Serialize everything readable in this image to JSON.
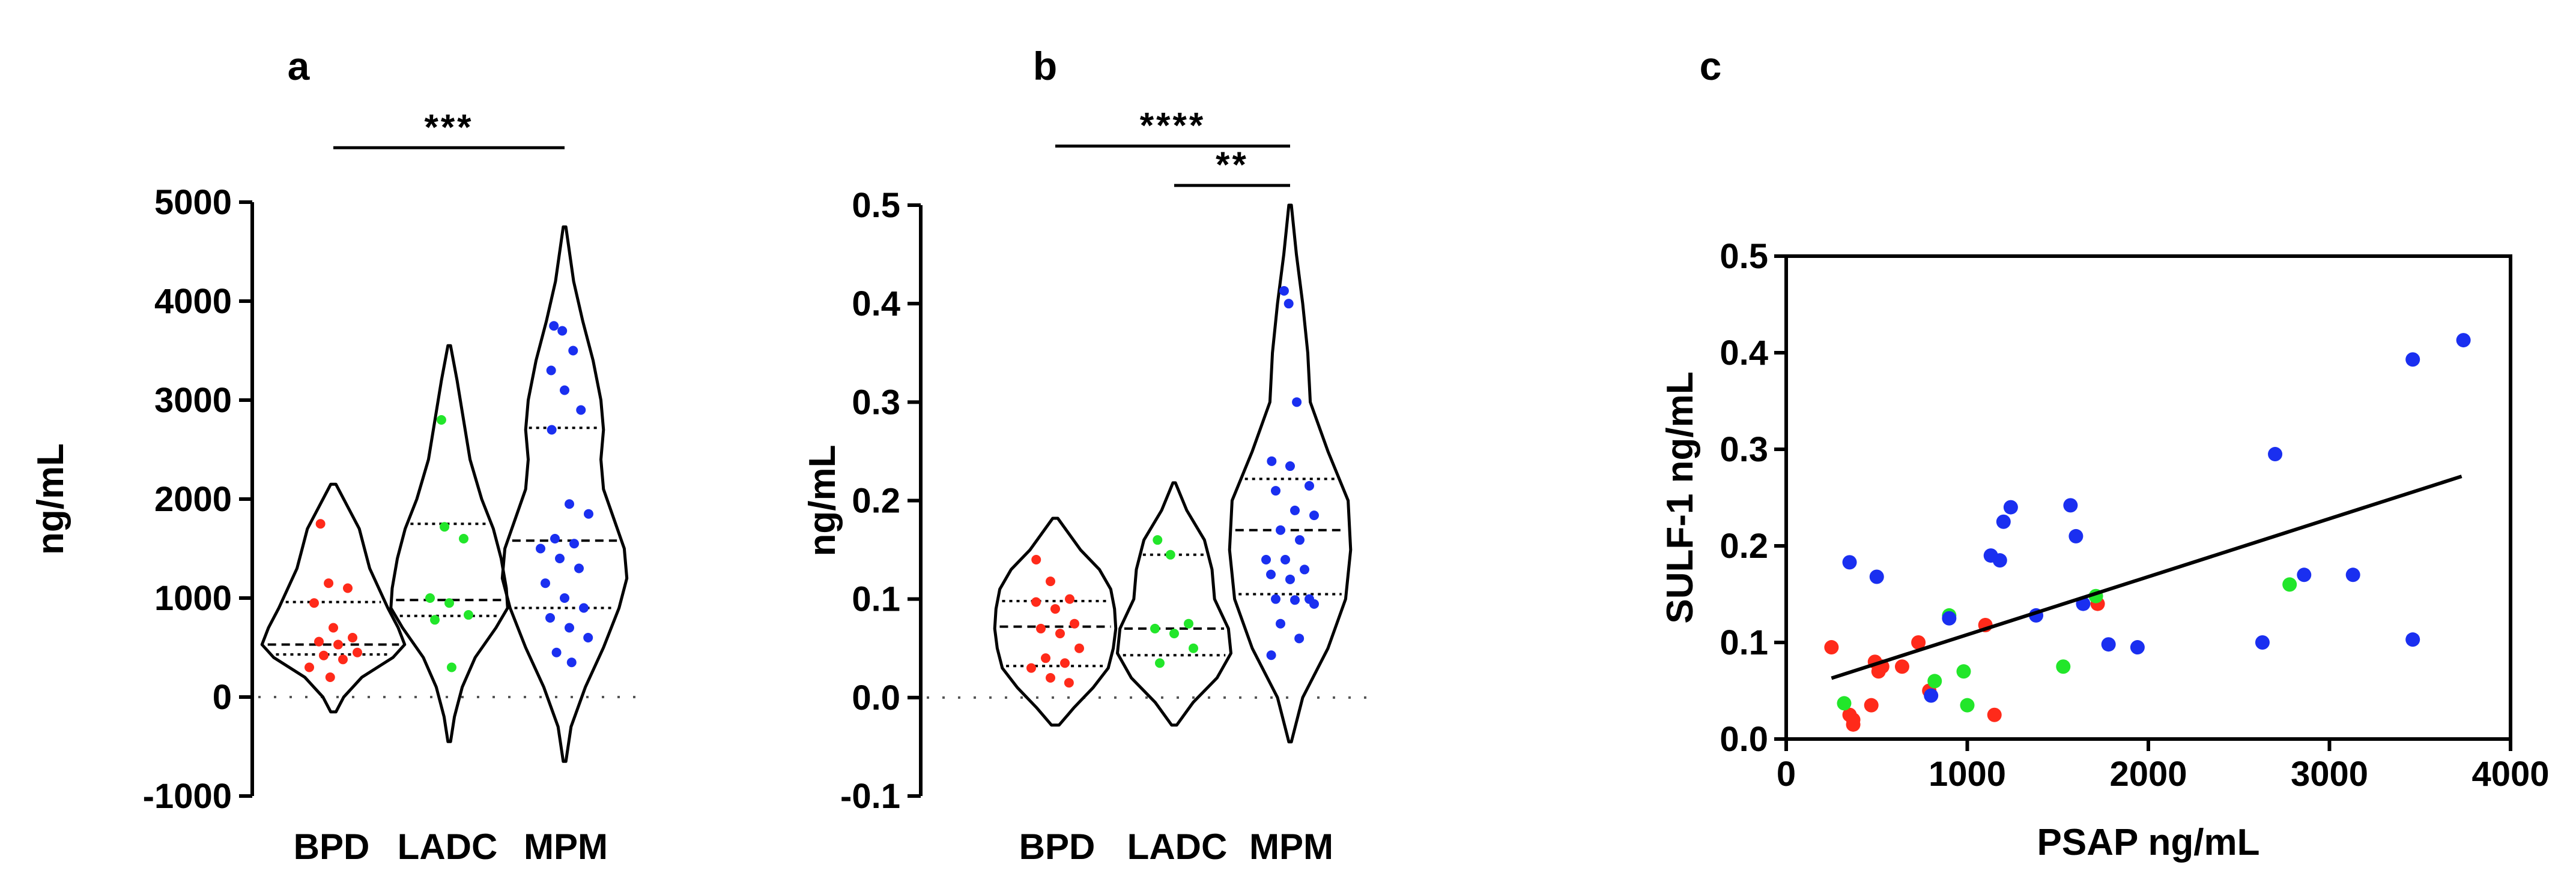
{
  "colors": {
    "BPD": "#ff2a1a",
    "LADC": "#22e62a",
    "MPM": "#1a2ff0",
    "axis": "#000000"
  },
  "chart_data": [
    {
      "panel": "a",
      "type": "violin",
      "ylabel": "ng/mL",
      "ylim": [
        -1000,
        5000
      ],
      "yticks": [
        5000,
        4000,
        3000,
        2000,
        1000,
        0,
        -1000
      ],
      "tick_labels": [
        "5000",
        "4000",
        "3000",
        "2000",
        "1000",
        "0",
        "-1000"
      ],
      "categories": [
        "BPD",
        "LADC",
        "MPM"
      ],
      "series": [
        {
          "name": "BPD",
          "color_key": "BPD",
          "violin_extent": [
            -150,
            2150
          ],
          "median": 530,
          "quartiles": [
            430,
            960
          ],
          "violin_profile": [
            [
              -150,
              0.02
            ],
            [
              0,
              0.08
            ],
            [
              200,
              0.22
            ],
            [
              400,
              0.46
            ],
            [
              530,
              0.55
            ],
            [
              700,
              0.5
            ],
            [
              900,
              0.42
            ],
            [
              1100,
              0.35
            ],
            [
              1300,
              0.28
            ],
            [
              1500,
              0.24
            ],
            [
              1700,
              0.2
            ],
            [
              1900,
              0.12
            ],
            [
              2150,
              0.02
            ]
          ],
          "values": [
            1750,
            1150,
            1100,
            950,
            700,
            600,
            560,
            530,
            450,
            420,
            380,
            300,
            200
          ]
        },
        {
          "name": "LADC",
          "color_key": "LADC",
          "violin_extent": [
            -450,
            3550
          ],
          "median": 980,
          "quartiles": [
            820,
            1750
          ],
          "violin_profile": [
            [
              -450,
              0.01
            ],
            [
              -200,
              0.04
            ],
            [
              100,
              0.1
            ],
            [
              400,
              0.2
            ],
            [
              700,
              0.36
            ],
            [
              900,
              0.45
            ],
            [
              1100,
              0.44
            ],
            [
              1400,
              0.4
            ],
            [
              1700,
              0.34
            ],
            [
              2000,
              0.25
            ],
            [
              2400,
              0.16
            ],
            [
              2800,
              0.11
            ],
            [
              3200,
              0.06
            ],
            [
              3550,
              0.01
            ]
          ],
          "values": [
            2800,
            1720,
            1600,
            1000,
            950,
            830,
            780,
            300
          ]
        },
        {
          "name": "MPM",
          "color_key": "MPM",
          "violin_extent": [
            -650,
            4750
          ],
          "median": 1580,
          "quartiles": [
            900,
            2720
          ],
          "violin_profile": [
            [
              -650,
              0.01
            ],
            [
              -300,
              0.05
            ],
            [
              100,
              0.16
            ],
            [
              500,
              0.3
            ],
            [
              900,
              0.42
            ],
            [
              1200,
              0.48
            ],
            [
              1500,
              0.46
            ],
            [
              1800,
              0.38
            ],
            [
              2100,
              0.3
            ],
            [
              2400,
              0.28
            ],
            [
              2700,
              0.3
            ],
            [
              3000,
              0.28
            ],
            [
              3400,
              0.22
            ],
            [
              3800,
              0.14
            ],
            [
              4200,
              0.07
            ],
            [
              4750,
              0.01
            ]
          ],
          "values": [
            3750,
            3700,
            3500,
            3300,
            3100,
            2900,
            2700,
            1950,
            1850,
            1600,
            1550,
            1500,
            1400,
            1300,
            1150,
            1000,
            900,
            800,
            700,
            600,
            450,
            350
          ]
        }
      ],
      "significance": [
        {
          "groups": [
            "BPD",
            "MPM"
          ],
          "label": "***",
          "level_value": 5550
        }
      ]
    },
    {
      "panel": "b",
      "type": "violin",
      "ylabel": "ng/mL",
      "ylim": [
        -0.1,
        0.5
      ],
      "yticks": [
        0.5,
        0.4,
        0.3,
        0.2,
        0.1,
        0.0,
        -0.1
      ],
      "tick_labels": [
        "0.5",
        "0.4",
        "0.3",
        "0.2",
        "0.1",
        "0.0",
        "-0.1"
      ],
      "categories": [
        "BPD",
        "LADC",
        "MPM"
      ],
      "series": [
        {
          "name": "BPD",
          "color_key": "BPD",
          "violin_extent": [
            -0.028,
            0.182
          ],
          "median": 0.072,
          "quartiles": [
            0.032,
            0.098
          ],
          "violin_profile": [
            [
              -0.028,
              0.03
            ],
            [
              -0.01,
              0.15
            ],
            [
              0.01,
              0.3
            ],
            [
              0.03,
              0.42
            ],
            [
              0.05,
              0.46
            ],
            [
              0.07,
              0.48
            ],
            [
              0.09,
              0.47
            ],
            [
              0.11,
              0.44
            ],
            [
              0.13,
              0.35
            ],
            [
              0.15,
              0.2
            ],
            [
              0.182,
              0.02
            ]
          ],
          "values": [
            0.14,
            0.118,
            0.1,
            0.097,
            0.09,
            0.075,
            0.07,
            0.065,
            0.05,
            0.04,
            0.035,
            0.03,
            0.02,
            0.015
          ]
        },
        {
          "name": "LADC",
          "color_key": "LADC",
          "violin_extent": [
            -0.028,
            0.218
          ],
          "median": 0.07,
          "quartiles": [
            0.043,
            0.145
          ],
          "violin_profile": [
            [
              -0.028,
              0.02
            ],
            [
              -0.005,
              0.15
            ],
            [
              0.02,
              0.34
            ],
            [
              0.045,
              0.45
            ],
            [
              0.07,
              0.43
            ],
            [
              0.1,
              0.32
            ],
            [
              0.13,
              0.3
            ],
            [
              0.16,
              0.24
            ],
            [
              0.19,
              0.1
            ],
            [
              0.218,
              0.01
            ]
          ],
          "values": [
            0.16,
            0.145,
            0.075,
            0.07,
            0.065,
            0.05,
            0.035
          ]
        },
        {
          "name": "MPM",
          "color_key": "MPM",
          "violin_extent": [
            -0.045,
            0.5
          ],
          "median": 0.17,
          "quartiles": [
            0.105,
            0.222
          ],
          "violin_profile": [
            [
              -0.045,
              0.01
            ],
            [
              0.0,
              0.1
            ],
            [
              0.05,
              0.3
            ],
            [
              0.1,
              0.44
            ],
            [
              0.15,
              0.48
            ],
            [
              0.2,
              0.46
            ],
            [
              0.25,
              0.3
            ],
            [
              0.3,
              0.16
            ],
            [
              0.35,
              0.14
            ],
            [
              0.4,
              0.1
            ],
            [
              0.45,
              0.05
            ],
            [
              0.5,
              0.01
            ]
          ],
          "values": [
            0.413,
            0.4,
            0.3,
            0.24,
            0.235,
            0.215,
            0.21,
            0.19,
            0.185,
            0.17,
            0.16,
            0.14,
            0.14,
            0.13,
            0.125,
            0.12,
            0.1,
            0.1,
            0.099,
            0.095,
            0.075,
            0.06,
            0.043
          ]
        }
      ],
      "significance": [
        {
          "groups": [
            "BPD",
            "MPM"
          ],
          "label": "****",
          "level_value": 0.56
        },
        {
          "groups": [
            "LADC",
            "MPM"
          ],
          "label": "**",
          "level_value": 0.52
        }
      ]
    },
    {
      "panel": "c",
      "type": "scatter",
      "xlabel": "PSAP ng/mL",
      "ylabel": "SULF-1 ng/mL",
      "xlim": [
        0,
        4000
      ],
      "ylim": [
        0,
        0.5
      ],
      "xticks": [
        0,
        1000,
        2000,
        3000,
        4000
      ],
      "x_tick_labels": [
        "0",
        "1000",
        "2000",
        "3000",
        "4000"
      ],
      "yticks": [
        0.5,
        0.4,
        0.3,
        0.2,
        0.1,
        0.0
      ],
      "y_tick_labels": [
        "0.5",
        "0.4",
        "0.3",
        "0.2",
        "0.1",
        "0.0"
      ],
      "regression_line": {
        "x": [
          250,
          3730
        ],
        "y": [
          0.063,
          0.272
        ]
      },
      "series": [
        {
          "name": "BPD",
          "color_key": "BPD",
          "x": [
            250,
            350,
            370,
            370,
            470,
            490,
            510,
            530,
            640,
            730,
            790,
            1100,
            1150,
            1720
          ],
          "y": [
            0.095,
            0.025,
            0.02,
            0.015,
            0.035,
            0.08,
            0.07,
            0.075,
            0.075,
            0.1,
            0.05,
            0.118,
            0.025,
            0.14
          ]
        },
        {
          "name": "LADC",
          "color_key": "LADC",
          "x": [
            320,
            820,
            900,
            980,
            1000,
            1530,
            1710,
            2780
          ],
          "y": [
            0.037,
            0.06,
            0.128,
            0.07,
            0.035,
            0.075,
            0.148,
            0.16
          ]
        },
        {
          "name": "MPM",
          "color_key": "MPM",
          "x": [
            350,
            500,
            800,
            900,
            1130,
            1180,
            1200,
            1240,
            1380,
            1570,
            1600,
            1640,
            1780,
            1940,
            2630,
            2700,
            2860,
            3130,
            3460,
            3460,
            3740
          ],
          "y": [
            0.183,
            0.168,
            0.045,
            0.125,
            0.19,
            0.185,
            0.225,
            0.24,
            0.128,
            0.242,
            0.21,
            0.14,
            0.098,
            0.095,
            0.1,
            0.295,
            0.17,
            0.17,
            0.393,
            0.103,
            0.413
          ]
        }
      ]
    }
  ]
}
